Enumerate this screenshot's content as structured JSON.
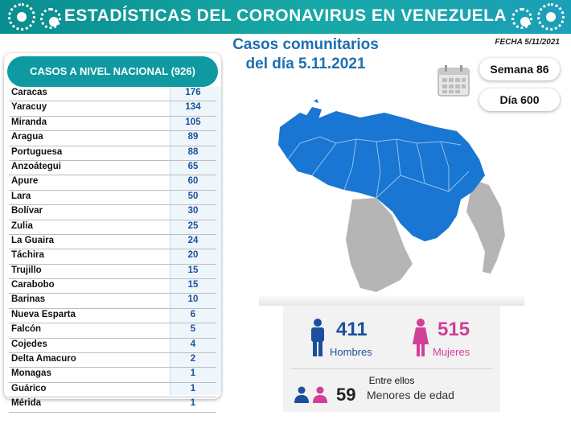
{
  "header": {
    "title": "ESTADÍSTICAS DEL CORONAVIRUS EN VENEZUELA",
    "date": "FECHA 5/11/2021",
    "subtitle_line1": "Casos comunitarios",
    "subtitle_line2": "del día 5.11.2021"
  },
  "badges": {
    "week": "Semana 86",
    "day": "Día 600"
  },
  "table": {
    "heading": "CASOS A NIVEL NACIONAL  (926)",
    "rows": [
      {
        "state": "Caracas",
        "cases": "176"
      },
      {
        "state": "Yaracuy",
        "cases": "134"
      },
      {
        "state": "Miranda",
        "cases": "105"
      },
      {
        "state": "Aragua",
        "cases": "89"
      },
      {
        "state": "Portuguesa",
        "cases": "88"
      },
      {
        "state": "Anzoátegui",
        "cases": "65"
      },
      {
        "state": "Apure",
        "cases": "60"
      },
      {
        "state": "Lara",
        "cases": "50"
      },
      {
        "state": "Bolívar",
        "cases": "30"
      },
      {
        "state": "Zulia",
        "cases": "25"
      },
      {
        "state": "La Guaira",
        "cases": "24"
      },
      {
        "state": "Táchira",
        "cases": "20"
      },
      {
        "state": "Trujillo",
        "cases": "15"
      },
      {
        "state": "Carabobo",
        "cases": "15"
      },
      {
        "state": "Barinas",
        "cases": "10"
      },
      {
        "state": "Nueva Esparta",
        "cases": "6"
      },
      {
        "state": "Falcón",
        "cases": "5"
      },
      {
        "state": "Cojedes",
        "cases": "4"
      },
      {
        "state": "Delta Amacuro",
        "cases": "2"
      },
      {
        "state": "Monagas",
        "cases": "1"
      },
      {
        "state": "Guárico",
        "cases": "1"
      },
      {
        "state": "Mérida",
        "cases": "1"
      }
    ]
  },
  "gender": {
    "men_count": "411",
    "men_label": "Hombres",
    "women_count": "515",
    "women_label": "Mujeres",
    "between_label": "Entre ellos",
    "minors_count": "59",
    "minors_label": "Menores de edad"
  },
  "colors": {
    "teal": "#0e9aa0",
    "blue_text": "#1c6fb0",
    "map_blue": "#1976d2",
    "map_gray": "#b5b5b5",
    "men": "#1c4f9c",
    "women": "#d13f96"
  },
  "icons": [
    "virus-icon",
    "calendar-icon",
    "man-icon",
    "woman-icon",
    "family-icon"
  ]
}
